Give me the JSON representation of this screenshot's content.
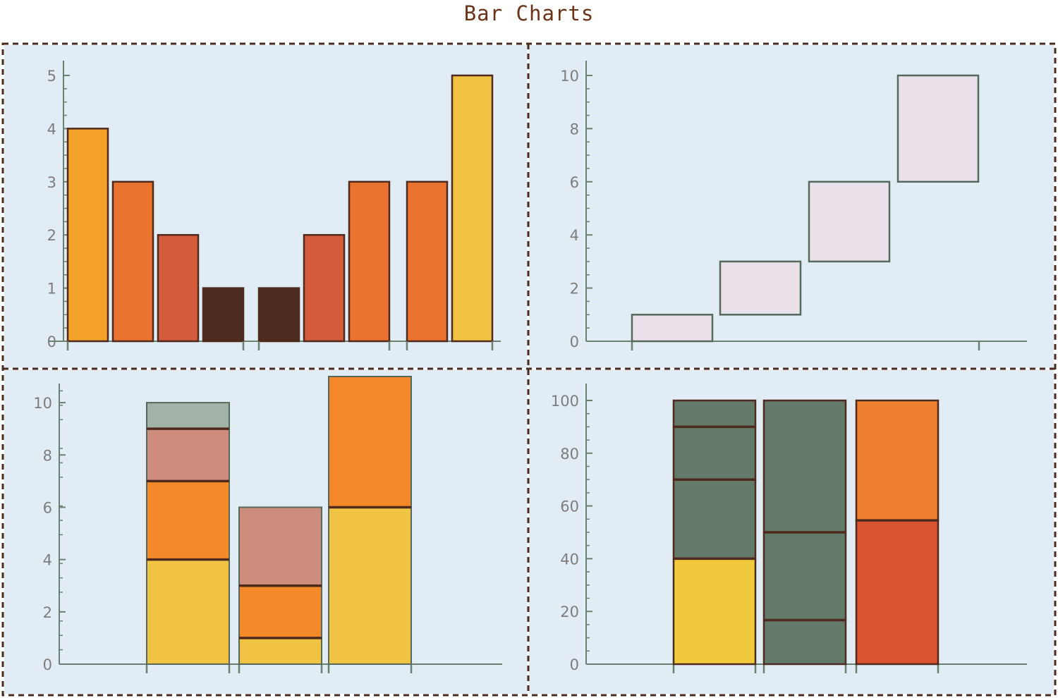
{
  "title": "Bar Charts",
  "colors": {
    "frame": "#4a2b1f",
    "panel_bg": "#e2ecf5",
    "axis": "#6a8070",
    "tick_label": "#7d7d7d",
    "bar_stroke_dark": "#4e2a1e",
    "bar_stroke_gray": "#55695c"
  },
  "chart_data": [
    {
      "type": "bar",
      "layout": "grouped",
      "ylim": [
        0,
        5
      ],
      "yticks": [
        "0",
        "1",
        "2",
        "3",
        "4",
        "5"
      ],
      "groups": [
        {
          "values": [
            4,
            3,
            2,
            1
          ],
          "colors": [
            "#f4a12a",
            "#e9732f",
            "#d45b3c",
            "#4e2a1e"
          ]
        },
        {
          "values": [
            1,
            2,
            3
          ],
          "colors": [
            "#4e2a1e",
            "#d45b3c",
            "#e9732f"
          ]
        },
        {
          "values": [
            3,
            5
          ],
          "colors": [
            "#e9732f",
            "#f0c344"
          ]
        }
      ]
    },
    {
      "type": "bar",
      "layout": "floating",
      "ylim": [
        0,
        10
      ],
      "yticks": [
        "0",
        "2",
        "4",
        "6",
        "8",
        "10"
      ],
      "bars": [
        {
          "low": 0,
          "high": 1
        },
        {
          "low": 1,
          "high": 3
        },
        {
          "low": 3,
          "high": 6
        },
        {
          "low": 6,
          "high": 10
        }
      ],
      "fill": "#e9e0ea"
    },
    {
      "type": "bar",
      "layout": "stacked",
      "ylim": [
        0,
        11
      ],
      "yticks": [
        "0",
        "2",
        "4",
        "6",
        "8",
        "10"
      ],
      "bars": [
        {
          "segments": [
            4,
            3,
            2,
            1
          ],
          "colors": [
            "#f0c344",
            "#f4892a",
            "#cd8c7c",
            "#a3b2a6"
          ]
        },
        {
          "segments": [
            1,
            2,
            3
          ],
          "colors": [
            "#f0c344",
            "#f4892a",
            "#cd8c7c"
          ]
        },
        {
          "segments": [
            6,
            5
          ],
          "colors": [
            "#f0c344",
            "#f4892a"
          ]
        }
      ]
    },
    {
      "type": "bar",
      "layout": "percentile",
      "ylim": [
        0,
        100
      ],
      "yticks": [
        "0",
        "20",
        "40",
        "60",
        "80",
        "100"
      ],
      "bars": [
        {
          "segments": [
            40,
            30,
            20,
            10
          ],
          "colors": [
            "#f0c93c",
            "#637a6b",
            "#637a6b",
            "#637a6b"
          ]
        },
        {
          "segments": [
            16.7,
            33.3,
            50
          ],
          "colors": [
            "#637a6b",
            "#637a6b",
            "#637a6b"
          ]
        },
        {
          "segments": [
            54.5,
            45.5
          ],
          "colors": [
            "#d9532e",
            "#ef8030"
          ]
        }
      ]
    }
  ]
}
